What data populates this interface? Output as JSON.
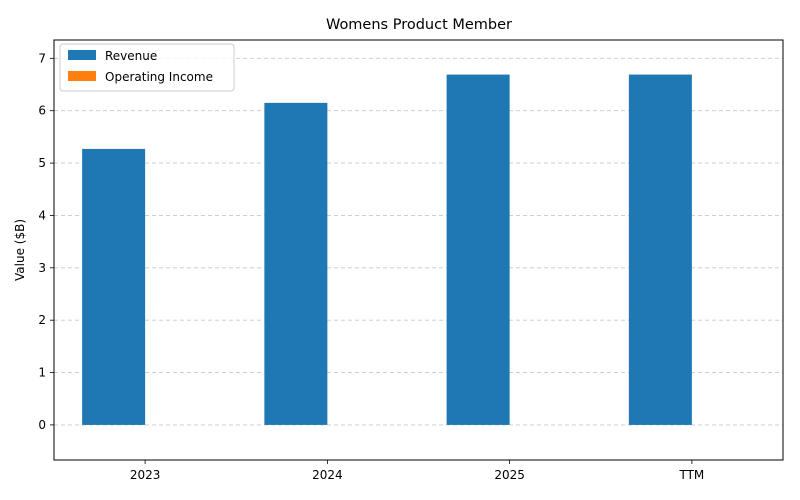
{
  "chart_data": {
    "type": "bar",
    "title": "Womens Product Member",
    "xlabel": "",
    "ylabel": "Value ($B)",
    "categories": [
      "2023",
      "2024",
      "2025",
      "TTM"
    ],
    "series": [
      {
        "name": "Revenue",
        "values": [
          5.27,
          6.15,
          6.69,
          6.69
        ],
        "color": "#1f77b4"
      },
      {
        "name": "Operating Income",
        "values": [
          0,
          0,
          0,
          0
        ],
        "color": "#ff7f0e"
      }
    ],
    "ylim": [
      -0.67,
      7.35
    ],
    "yticks": [
      "0",
      "1",
      "2",
      "3",
      "4",
      "5",
      "6",
      "7"
    ],
    "grid": true,
    "legend_position": "top-left"
  }
}
